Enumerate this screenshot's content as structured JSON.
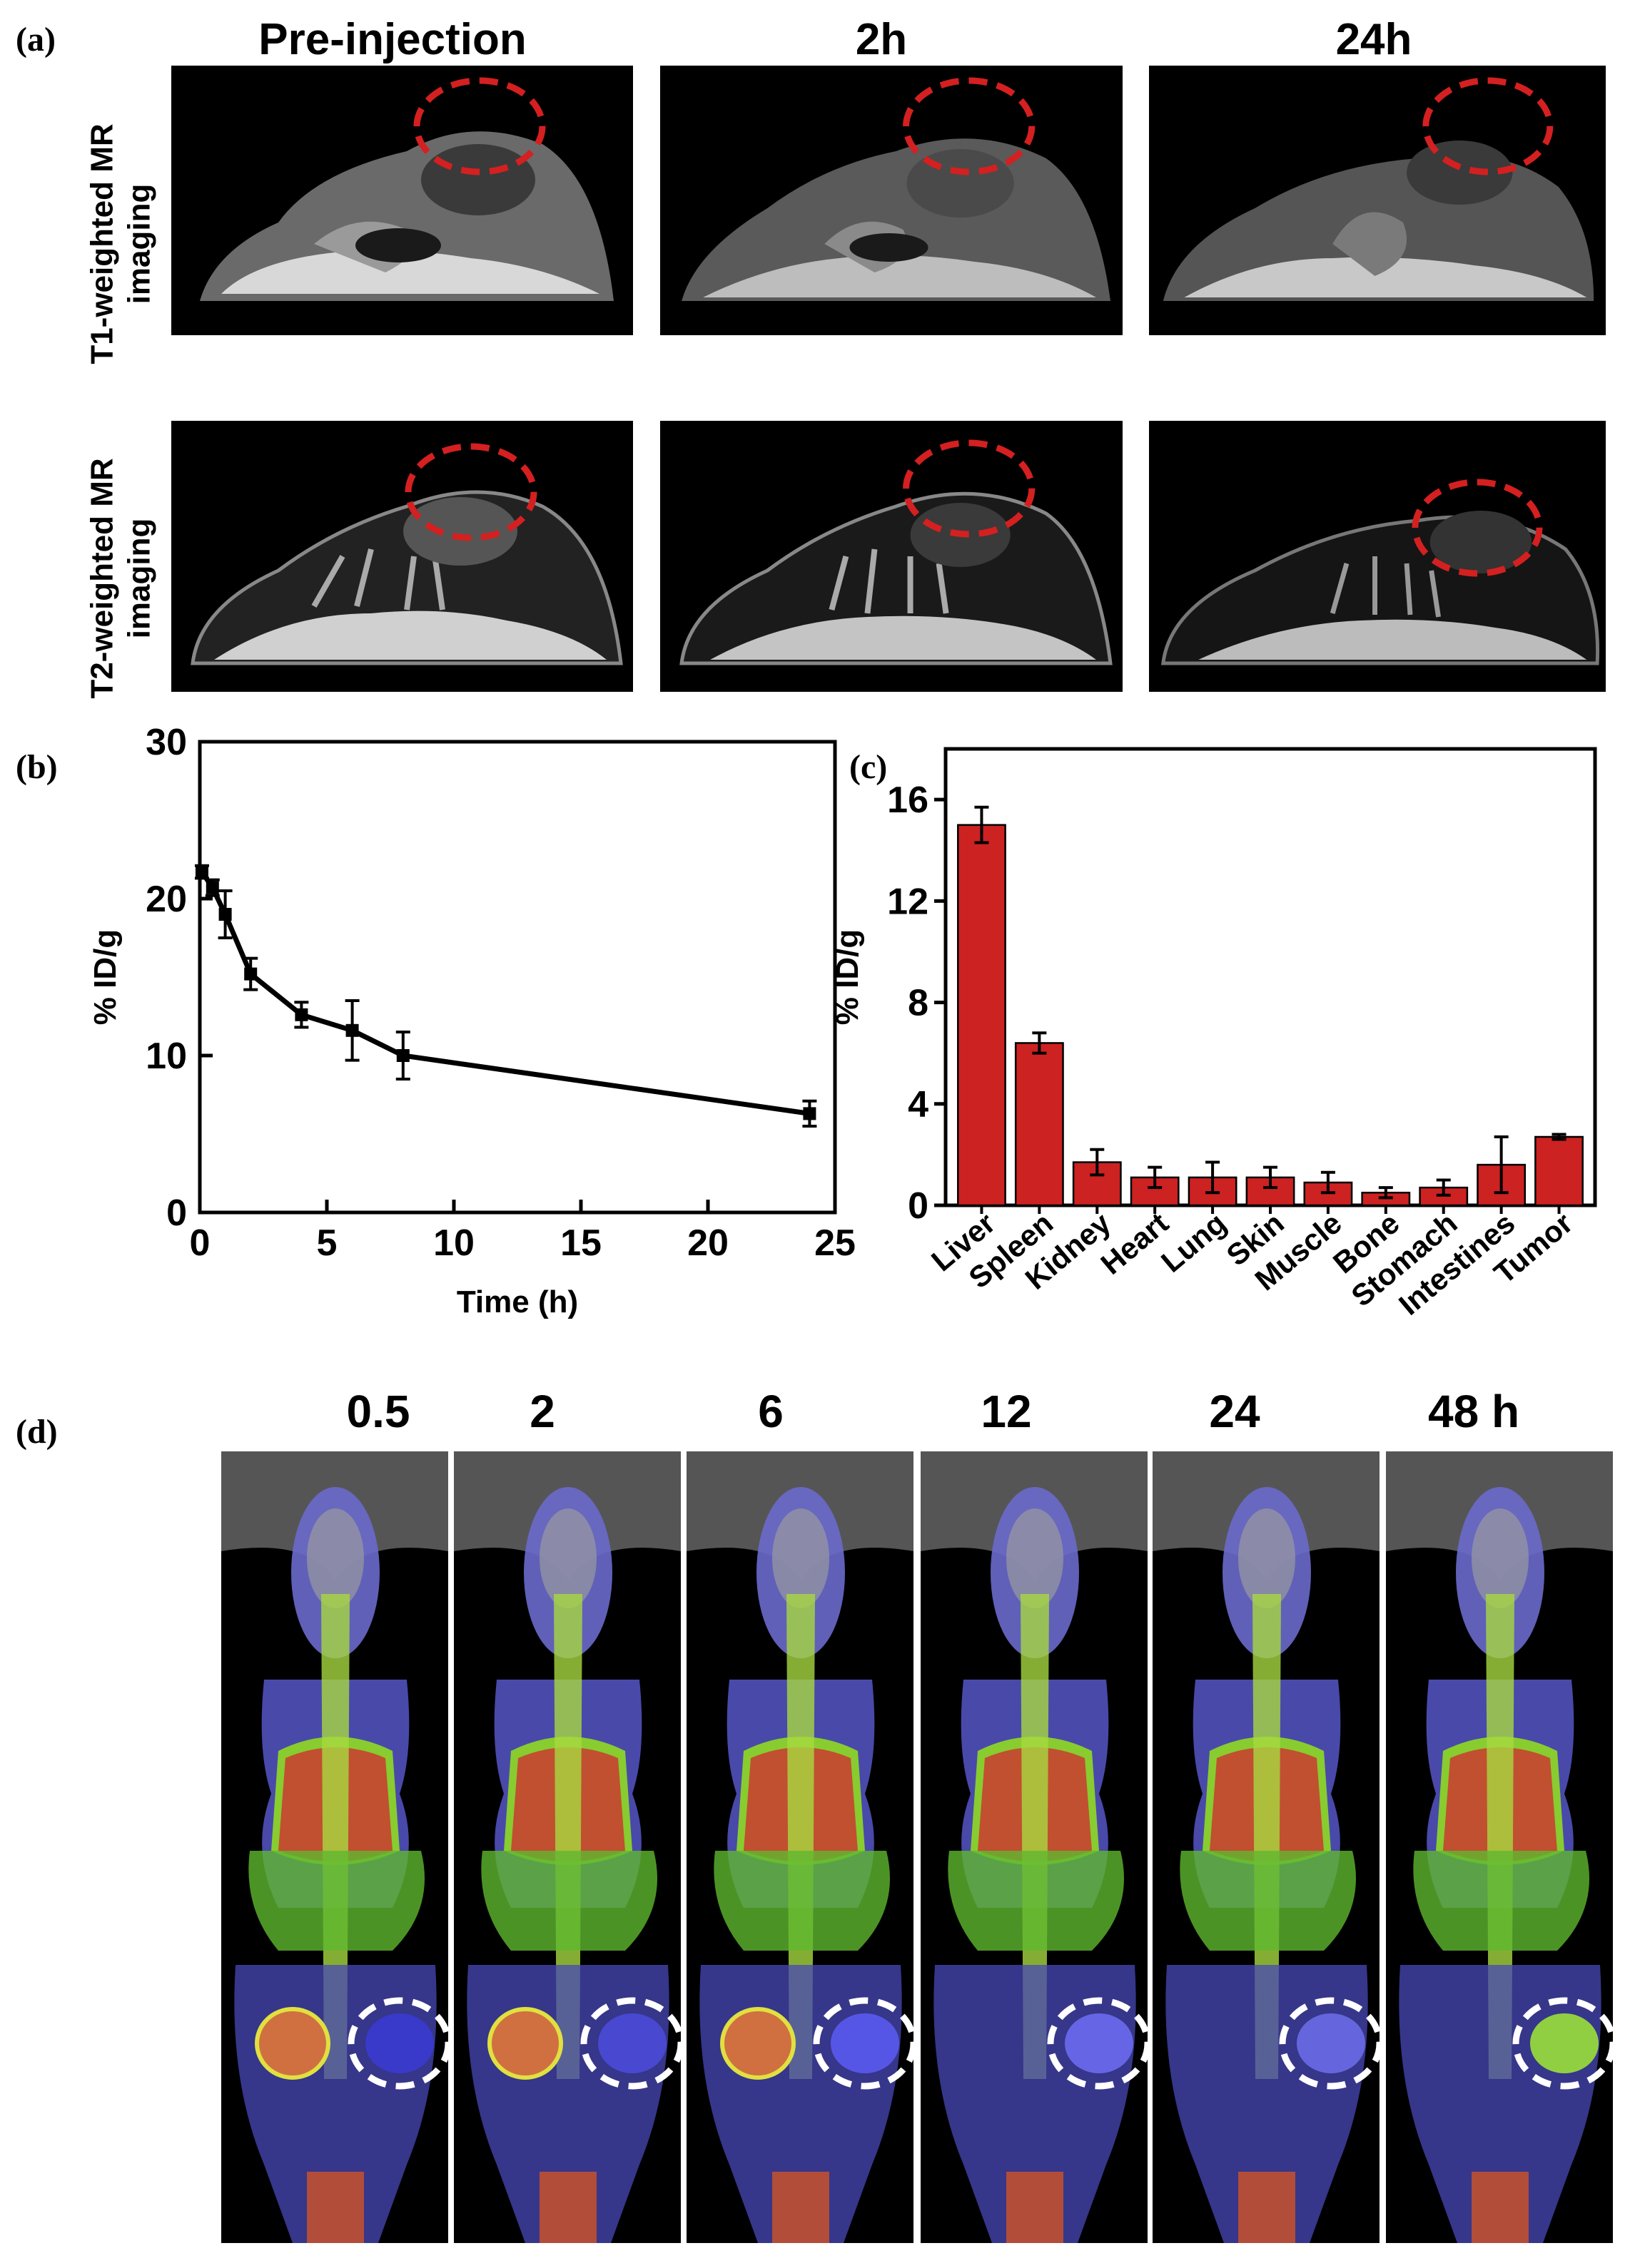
{
  "panel_a": {
    "letter": "(a)",
    "columns": [
      "Pre-injection",
      "2h",
      "24h"
    ],
    "rows": [
      "T1-weighted MR imaging",
      "T2-weighted MR imaging"
    ],
    "marker_color": "#d42020"
  },
  "panel_b": {
    "letter": "(b)"
  },
  "panel_c": {
    "letter": "(c)"
  },
  "panel_d": {
    "letter": "(d)",
    "time_labels": [
      "0.5",
      "2",
      "6",
      "12",
      "24",
      "48 h"
    ],
    "marker_color": "#ffffff"
  },
  "chart_data": [
    {
      "type": "line",
      "title": "",
      "xlabel": "Time (h)",
      "ylabel": "% ID/g",
      "xlim": [
        0,
        25
      ],
      "ylim": [
        0,
        30
      ],
      "xticks": [
        0,
        5,
        10,
        15,
        20,
        25
      ],
      "yticks": [
        0,
        10,
        20,
        30
      ],
      "x": [
        0.083,
        0.5,
        1,
        2,
        4,
        6,
        8,
        24
      ],
      "y": [
        21.7,
        20.7,
        19.0,
        15.2,
        12.6,
        11.6,
        10.0,
        6.3
      ],
      "err": [
        0.4,
        0.5,
        1.5,
        1.0,
        0.8,
        1.9,
        1.5,
        0.8
      ],
      "color": "#000000"
    },
    {
      "type": "bar",
      "title": "",
      "xlabel": "",
      "ylabel": "% ID/g",
      "ylim": [
        0,
        18
      ],
      "yticks": [
        0,
        4,
        8,
        12,
        16
      ],
      "categories": [
        "Liver",
        "Spleen",
        "Kidney",
        "Heart",
        "Lung",
        "Skin",
        "Muscle",
        "Bone",
        "Stomach",
        "Intestines",
        "Tumor"
      ],
      "values": [
        15.0,
        6.4,
        1.7,
        1.1,
        1.1,
        1.1,
        0.9,
        0.5,
        0.7,
        1.6,
        2.7
      ],
      "err": [
        0.7,
        0.4,
        0.5,
        0.4,
        0.6,
        0.4,
        0.4,
        0.2,
        0.3,
        1.1,
        0.1
      ],
      "color": "#cc2222"
    }
  ]
}
